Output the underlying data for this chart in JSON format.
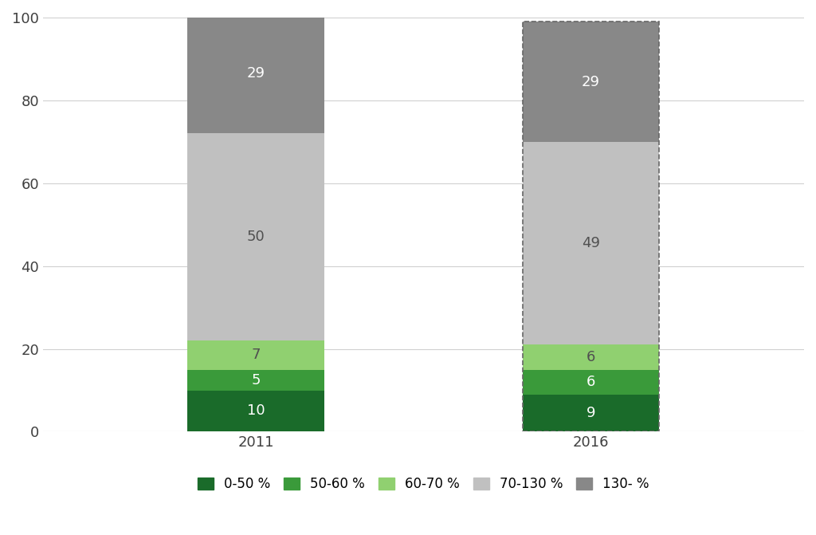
{
  "categories": [
    "2011",
    "2016"
  ],
  "segments": [
    {
      "label": "0-50 %",
      "values": [
        10,
        9
      ],
      "color": "#1a6b2a"
    },
    {
      "label": "50-60 %",
      "values": [
        5,
        6
      ],
      "color": "#3a9a3a"
    },
    {
      "label": "60-70 %",
      "values": [
        7,
        6
      ],
      "color": "#90d070"
    },
    {
      "label": "70-130 %",
      "values": [
        50,
        49
      ],
      "color": "#c0c0c0"
    },
    {
      "label": "130- %",
      "values": [
        29,
        29
      ],
      "color": "#888888"
    }
  ],
  "ylim": [
    0,
    100
  ],
  "yticks": [
    0,
    20,
    40,
    60,
    80,
    100
  ],
  "bar_width": 0.18,
  "bar_positions": [
    0.28,
    0.72
  ],
  "background_color": "#ffffff",
  "grid_color": "#d0d0d0",
  "dashed_bar_index": 1,
  "font_size_labels": 13,
  "font_size_ticks": 13,
  "font_size_legend": 12,
  "text_colors": {
    "#1a6b2a": "#ffffff",
    "#3a9a3a": "#ffffff",
    "#90d070": "#505050",
    "#c0c0c0": "#505050",
    "#888888": "#ffffff"
  }
}
